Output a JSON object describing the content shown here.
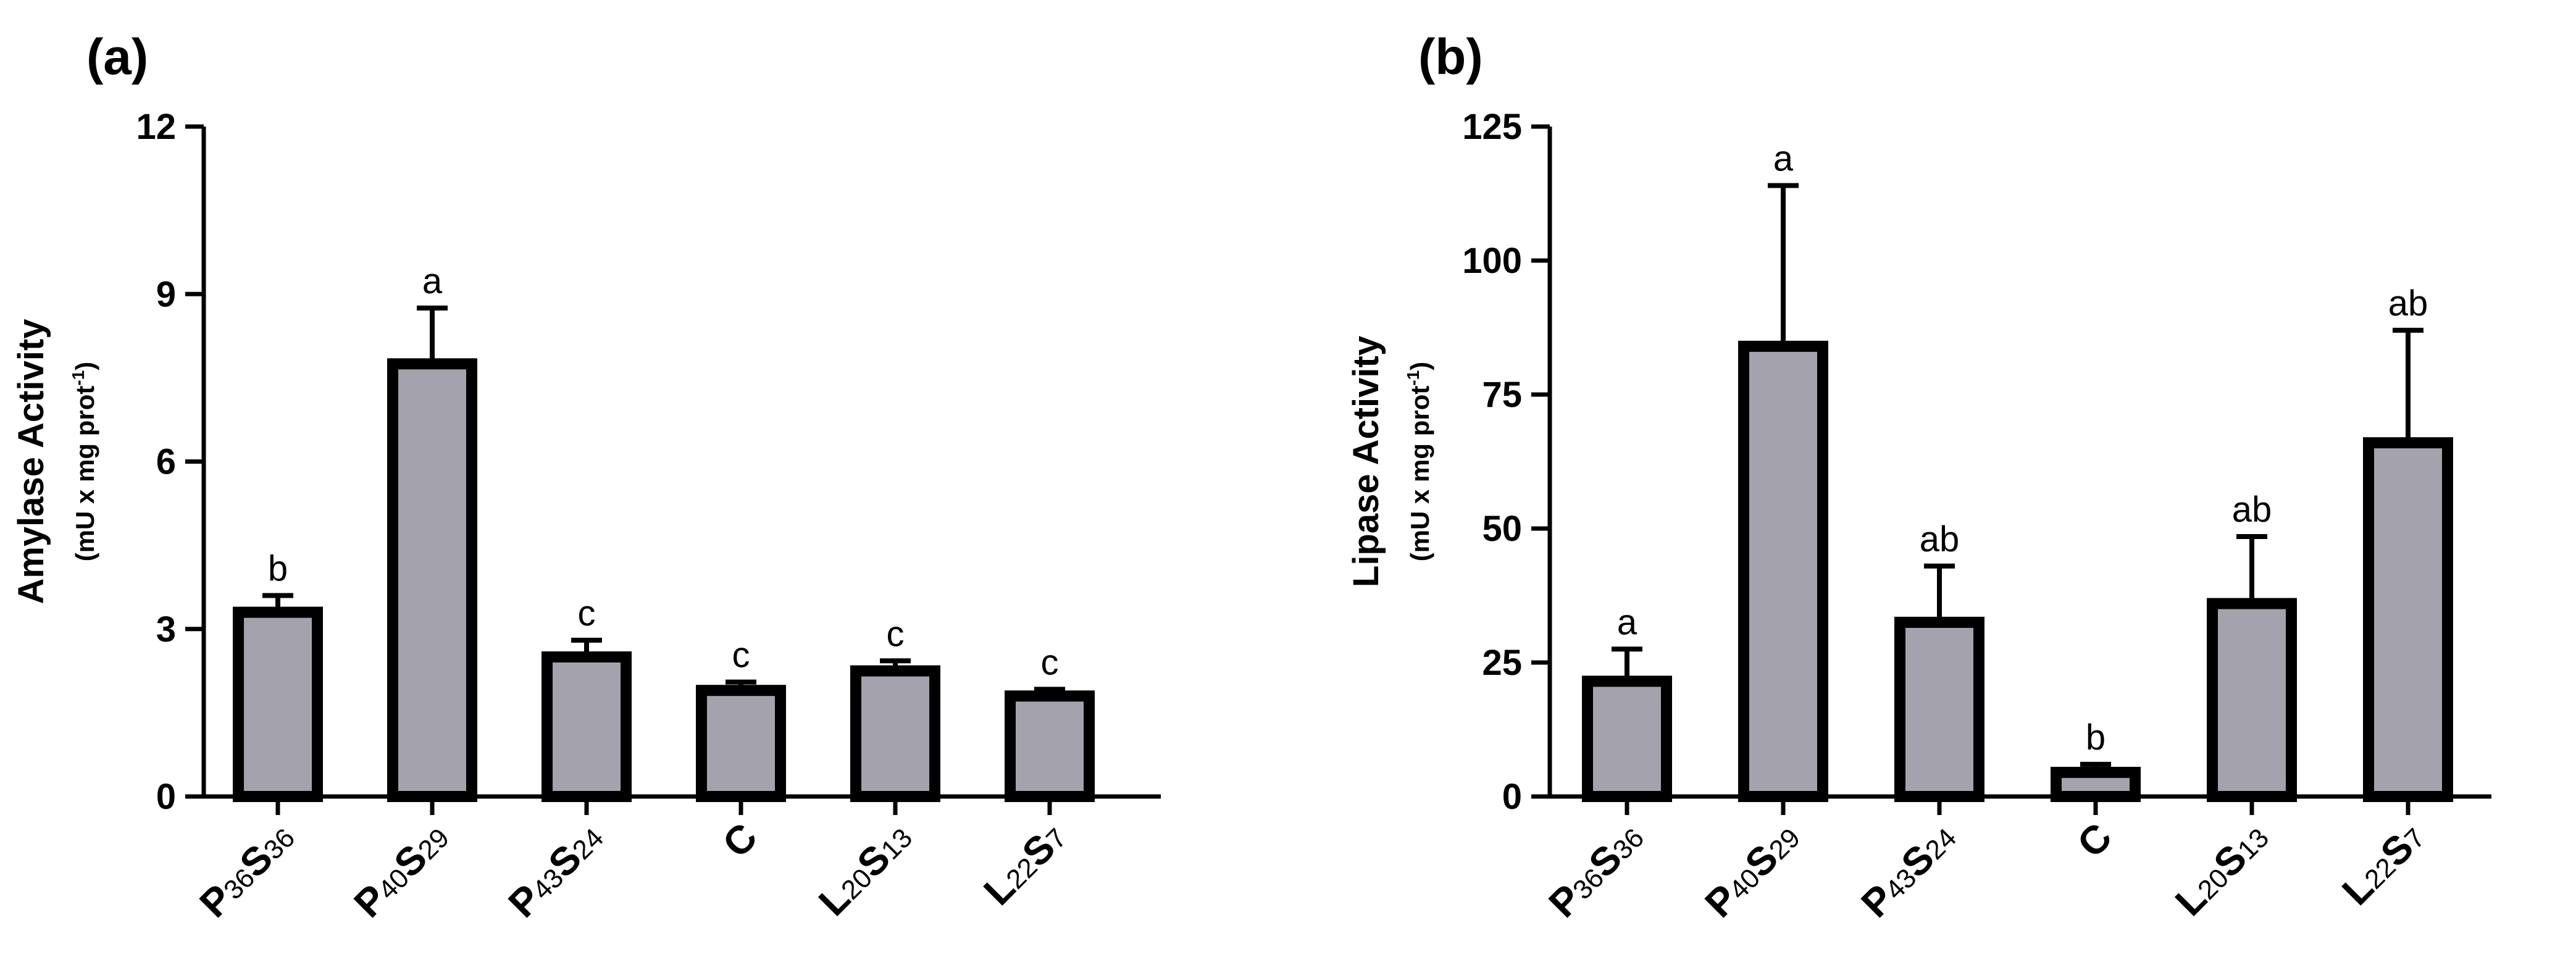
{
  "colors": {
    "bar_fill": "#a4a3ad",
    "stroke": "#000000",
    "background": "#ffffff"
  },
  "chart_data": [
    {
      "panel": "(a)",
      "type": "bar",
      "ylabel": "Amylase Activity",
      "yunit": "(mU x mg prot-1)",
      "ylabel_unit_prefix": "(mU x mg prot",
      "ylabel_unit_sup": "-1",
      "ylabel_unit_suffix": ")",
      "ylim": [
        0,
        12
      ],
      "yticks": [
        0,
        3,
        6,
        9,
        12
      ],
      "categories": [
        {
          "label": "P36S36",
          "parts": [
            {
              "t": "P",
              "bold": true
            },
            {
              "t": "36",
              "sub": true
            },
            {
              "t": "S",
              "bold": true
            },
            {
              "t": "36",
              "sub": true
            }
          ]
        },
        {
          "label": "P40S29",
          "parts": [
            {
              "t": "P",
              "bold": true
            },
            {
              "t": "40",
              "sub": true
            },
            {
              "t": "S",
              "bold": true
            },
            {
              "t": "29",
              "sub": true
            }
          ]
        },
        {
          "label": "P43S24",
          "parts": [
            {
              "t": "P",
              "bold": true
            },
            {
              "t": "43",
              "sub": true
            },
            {
              "t": "S",
              "bold": true
            },
            {
              "t": "24",
              "sub": true
            }
          ]
        },
        {
          "label": "C",
          "parts": [
            {
              "t": "C",
              "bold": true
            }
          ]
        },
        {
          "label": "L20S13",
          "parts": [
            {
              "t": "L",
              "bold": true
            },
            {
              "t": "20",
              "sub": true
            },
            {
              "t": "S",
              "bold": true
            },
            {
              "t": "13",
              "sub": true
            }
          ]
        },
        {
          "label": "L22S7",
          "parts": [
            {
              "t": "L",
              "bold": true
            },
            {
              "t": "22",
              "sub": true
            },
            {
              "t": "S",
              "bold": true
            },
            {
              "t": "7",
              "sub": true
            }
          ]
        }
      ],
      "values": [
        3.3,
        7.75,
        2.5,
        1.9,
        2.25,
        1.8
      ],
      "errors": [
        0.3,
        1.0,
        0.3,
        0.15,
        0.18,
        0.12
      ],
      "significance": [
        "b",
        "a",
        "c",
        "c",
        "c",
        "c"
      ]
    },
    {
      "panel": "(b)",
      "type": "bar",
      "ylabel": "Lipase Activity",
      "yunit": "(mU x mg prot-1)",
      "ylabel_unit_prefix": "(mU x mg prot",
      "ylabel_unit_sup": "-1",
      "ylabel_unit_suffix": ")",
      "ylim": [
        0,
        125
      ],
      "yticks": [
        0,
        25,
        50,
        75,
        100,
        125
      ],
      "categories": [
        {
          "label": "P36S36",
          "parts": [
            {
              "t": "P",
              "bold": true
            },
            {
              "t": "36",
              "sub": true
            },
            {
              "t": "S",
              "bold": true
            },
            {
              "t": "36",
              "sub": true
            }
          ]
        },
        {
          "label": "P40S29",
          "parts": [
            {
              "t": "P",
              "bold": true
            },
            {
              "t": "40",
              "sub": true
            },
            {
              "t": "S",
              "bold": true
            },
            {
              "t": "29",
              "sub": true
            }
          ]
        },
        {
          "label": "P43S24",
          "parts": [
            {
              "t": "P",
              "bold": true
            },
            {
              "t": "43",
              "sub": true
            },
            {
              "t": "S",
              "bold": true
            },
            {
              "t": "24",
              "sub": true
            }
          ]
        },
        {
          "label": "C",
          "parts": [
            {
              "t": "C",
              "bold": true
            }
          ]
        },
        {
          "label": "L20S13",
          "parts": [
            {
              "t": "L",
              "bold": true
            },
            {
              "t": "20",
              "sub": true
            },
            {
              "t": "S",
              "bold": true
            },
            {
              "t": "13",
              "sub": true
            }
          ]
        },
        {
          "label": "L22S7",
          "parts": [
            {
              "t": "L",
              "bold": true
            },
            {
              "t": "22",
              "sub": true
            },
            {
              "t": "S",
              "bold": true
            },
            {
              "t": "7",
              "sub": true
            }
          ]
        }
      ],
      "values": [
        21.5,
        84,
        32.5,
        4.5,
        36,
        66
      ],
      "errors": [
        6,
        30,
        10.5,
        1.5,
        12.5,
        21
      ],
      "significance": [
        "a",
        "a",
        "ab",
        "b",
        "ab",
        "ab"
      ]
    }
  ]
}
